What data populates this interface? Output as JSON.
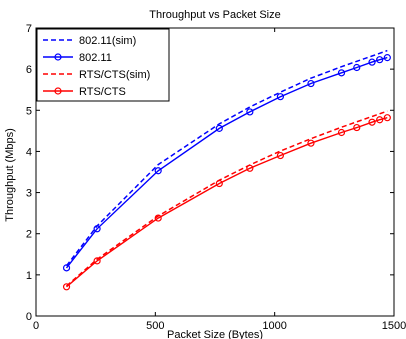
{
  "chart_data": {
    "type": "line",
    "title": "Throughput vs Packet Size",
    "xlabel": "Packet Size (Bytes)",
    "ylabel": "Throughput (Mbps)",
    "xlim": [
      0,
      1500
    ],
    "ylim": [
      0,
      7
    ],
    "xticks": [
      "0",
      "500",
      "1000",
      "1500"
    ],
    "yticks": [
      "0",
      "1",
      "2",
      "3",
      "4",
      "5",
      "6",
      "7"
    ],
    "legend_position": "top-left",
    "grid": false,
    "series": [
      {
        "name": "802.11(sim)",
        "color": "#0000ff",
        "style": "dashed",
        "marker": "none",
        "x": [
          128,
          256,
          512,
          768,
          896,
          1024,
          1152,
          1280,
          1344,
          1408,
          1472
        ],
        "y": [
          1.22,
          2.19,
          3.68,
          4.67,
          5.08,
          5.44,
          5.78,
          6.06,
          6.19,
          6.32,
          6.45
        ]
      },
      {
        "name": "802.11",
        "color": "#0000ff",
        "style": "solid",
        "marker": "circle",
        "x": [
          128,
          256,
          512,
          768,
          896,
          1024,
          1152,
          1280,
          1344,
          1408,
          1440,
          1472
        ],
        "y": [
          1.17,
          2.12,
          3.53,
          4.56,
          4.96,
          5.33,
          5.65,
          5.91,
          6.04,
          6.17,
          6.23,
          6.28
        ]
      },
      {
        "name": "RTS/CTS(sim)",
        "color": "#ff0000",
        "style": "dashed",
        "marker": "none",
        "x": [
          128,
          256,
          512,
          768,
          896,
          1024,
          1152,
          1280,
          1344,
          1408,
          1472
        ],
        "y": [
          0.73,
          1.38,
          2.43,
          3.3,
          3.67,
          4.01,
          4.31,
          4.59,
          4.72,
          4.85,
          4.98
        ]
      },
      {
        "name": "RTS/CTS",
        "color": "#ff0000",
        "style": "solid",
        "marker": "circle",
        "x": [
          128,
          256,
          512,
          768,
          896,
          1024,
          1152,
          1280,
          1344,
          1408,
          1440,
          1472
        ],
        "y": [
          0.71,
          1.34,
          2.38,
          3.22,
          3.59,
          3.9,
          4.2,
          4.46,
          4.58,
          4.71,
          4.77,
          4.82
        ]
      }
    ]
  }
}
